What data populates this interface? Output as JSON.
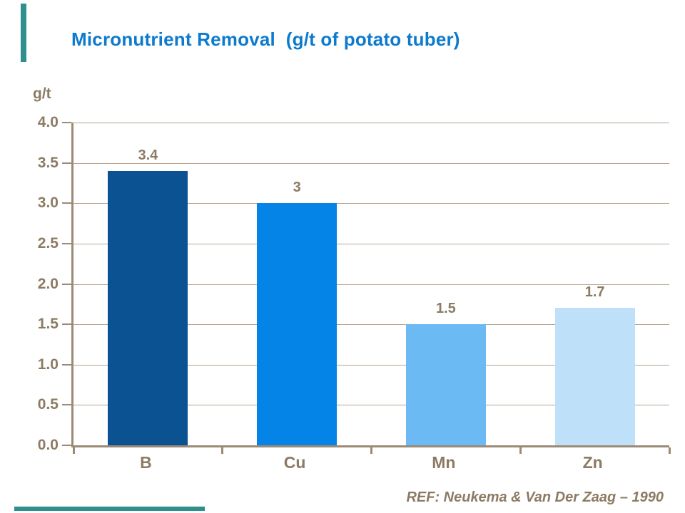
{
  "title": "Micronutrient Removal  (g/t of potato tuber)",
  "footer": {
    "ref": "REF: Neukema & Van Der Zaag – 1990"
  },
  "colors": {
    "accent_teal": "#2E8F8F",
    "title_blue": "#0C7ACE",
    "text_brown": "#8C7B63",
    "axis_brown": "#9C8A74",
    "gridline_tan": "#B3A390"
  },
  "chart_data": {
    "type": "bar",
    "title": "Micronutrient Removal (g/t of potato tuber)",
    "ylabel": "g/t",
    "xlabel": "",
    "categories": [
      "B",
      "Cu",
      "Mn",
      "Zn"
    ],
    "values": [
      3.4,
      3,
      1.5,
      1.7
    ],
    "value_labels": [
      "3.4",
      "3",
      "1.5",
      "1.7"
    ],
    "bar_colors": [
      "#0A5291",
      "#0584E8",
      "#6CBAF4",
      "#BFE0F9"
    ],
    "ylim": [
      0,
      4
    ],
    "ytick_step": 0.5,
    "ytick_labels": [
      "0.0",
      "0.5",
      "1.0",
      "1.5",
      "2.0",
      "2.5",
      "3.0",
      "3.5",
      "4.0"
    ],
    "grid": "horizontal-behind-bars",
    "legend": "none"
  }
}
